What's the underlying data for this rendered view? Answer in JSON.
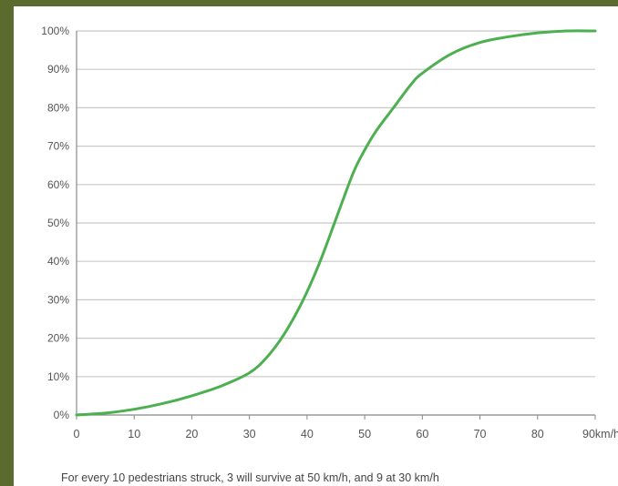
{
  "chart_data": {
    "type": "line",
    "title": "",
    "xlabel": "",
    "ylabel": "",
    "xlim": [
      0,
      90
    ],
    "ylim": [
      0,
      100
    ],
    "x_ticks": [
      "0",
      "10",
      "20",
      "30",
      "40",
      "50",
      "60",
      "70",
      "80",
      "90km/h"
    ],
    "y_ticks": [
      "0%",
      "10%",
      "20%",
      "30%",
      "40%",
      "50%",
      "60%",
      "70%",
      "80%",
      "90%",
      "100%"
    ],
    "grid": true,
    "series": [
      {
        "color": "#4caf50",
        "x": [
          0,
          5,
          10,
          15,
          20,
          25,
          30,
          33,
          36,
          39,
          42,
          45,
          48,
          50,
          52,
          55,
          58,
          60,
          65,
          70,
          75,
          80,
          85,
          90
        ],
        "y": [
          0,
          0.5,
          1.5,
          3,
          5,
          7.5,
          11,
          15,
          21,
          29,
          39,
          51,
          63,
          69,
          74,
          80,
          86,
          89,
          94,
          97,
          98.5,
          99.5,
          100,
          100
        ]
      }
    ],
    "caption": "For every 10 pedestrians struck, 3 will survive at 50 km/h, and 9 at 30 km/h"
  }
}
